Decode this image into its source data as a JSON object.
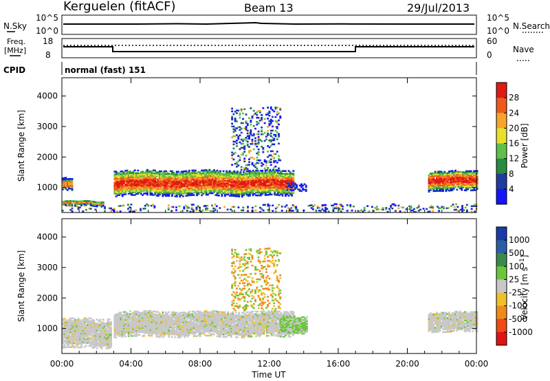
{
  "header": {
    "station": "Kerguelen (fitACF)",
    "beam": "Beam 13",
    "date": "29/Jul/2013"
  },
  "mini_panels": {
    "nsky": {
      "label": "N.Sky",
      "left_ticks": [
        "10^5",
        "10^0"
      ],
      "right_label": "N.Search",
      "right_ticks": [
        "10^5",
        "10^0"
      ]
    },
    "freq": {
      "label_lines": [
        "Freq.",
        "[MHz]"
      ],
      "left_ticks": [
        "18",
        "8"
      ],
      "right_label": "Nave",
      "right_ticks": [
        "60",
        "0"
      ]
    },
    "cpid": {
      "label": "CPID",
      "mode": "normal (fast) 151"
    }
  },
  "chart_data": [
    {
      "type": "heatmap",
      "title": "",
      "ylabel": "Slant Range [km]",
      "ylim": [
        180,
        4600
      ],
      "yticks": [
        "4000",
        "3000",
        "2000",
        "1000"
      ],
      "xlim": [
        0,
        24
      ],
      "colorbar": {
        "label": "Power [dB]",
        "ticks": [
          "28",
          "24",
          "20",
          "16",
          "12",
          "8",
          "4"
        ],
        "colors": [
          "#1414ff",
          "#1f3d9e",
          "#2a8a3e",
          "#5fc04a",
          "#e8e02a",
          "#f5a52a",
          "#ef5a1c",
          "#e01a14"
        ]
      },
      "echo_regions": [
        {
          "t": [
            0.0,
            0.6
          ],
          "range": [
            880,
            1300
          ],
          "level": "mid"
        },
        {
          "t": [
            0.0,
            2.4
          ],
          "range": [
            380,
            560
          ],
          "level": "mid"
        },
        {
          "t": [
            3.0,
            13.4
          ],
          "range": [
            720,
            1550
          ],
          "level": "high"
        },
        {
          "t": [
            13.0,
            14.1
          ],
          "range": [
            900,
            1150
          ],
          "level": "low"
        },
        {
          "t": [
            9.8,
            12.6
          ],
          "range": [
            1600,
            3600
          ],
          "level": "sparse"
        },
        {
          "t": [
            21.2,
            24.0
          ],
          "range": [
            880,
            1550
          ],
          "level": "high"
        },
        {
          "t": [
            0.0,
            24.0
          ],
          "range": [
            180,
            420
          ],
          "level": "sparse"
        }
      ]
    },
    {
      "type": "heatmap",
      "title": "",
      "ylabel": "Slant Range [km]",
      "ylim": [
        180,
        4600
      ],
      "yticks": [
        "4000",
        "3000",
        "2000",
        "1000"
      ],
      "xlim": [
        0,
        24
      ],
      "xlabel": "Time UT",
      "xticks": [
        "00:00",
        "04:00",
        "08:00",
        "12:00",
        "16:00",
        "20:00",
        "00:00"
      ],
      "colorbar": {
        "label": "Velocity [m s^-1]",
        "ticks": [
          "1000",
          "500",
          "100",
          "25",
          "-25",
          "-100",
          "-500",
          "-1000"
        ],
        "colors": [
          "#1a3aa8",
          "#2a5ea8",
          "#3a8a4a",
          "#6cc63a",
          "#c8c8c8",
          "#f0c02a",
          "#f08a1a",
          "#ef4a14",
          "#e01414"
        ]
      },
      "echo_regions": [
        {
          "t": [
            0.0,
            2.8
          ],
          "range": [
            350,
            1300
          ],
          "level": "ground"
        },
        {
          "t": [
            3.0,
            13.4
          ],
          "range": [
            720,
            1550
          ],
          "level": "ground"
        },
        {
          "t": [
            12.6,
            14.2
          ],
          "range": [
            850,
            1400
          ],
          "level": "green"
        },
        {
          "t": [
            21.2,
            24.0
          ],
          "range": [
            880,
            1550
          ],
          "level": "ground"
        },
        {
          "t": [
            9.8,
            12.6
          ],
          "range": [
            1600,
            3600
          ],
          "level": "orange"
        }
      ]
    }
  ],
  "colors": {
    "axis": "#000000",
    "ground_scatter": "#c8c8c8"
  }
}
